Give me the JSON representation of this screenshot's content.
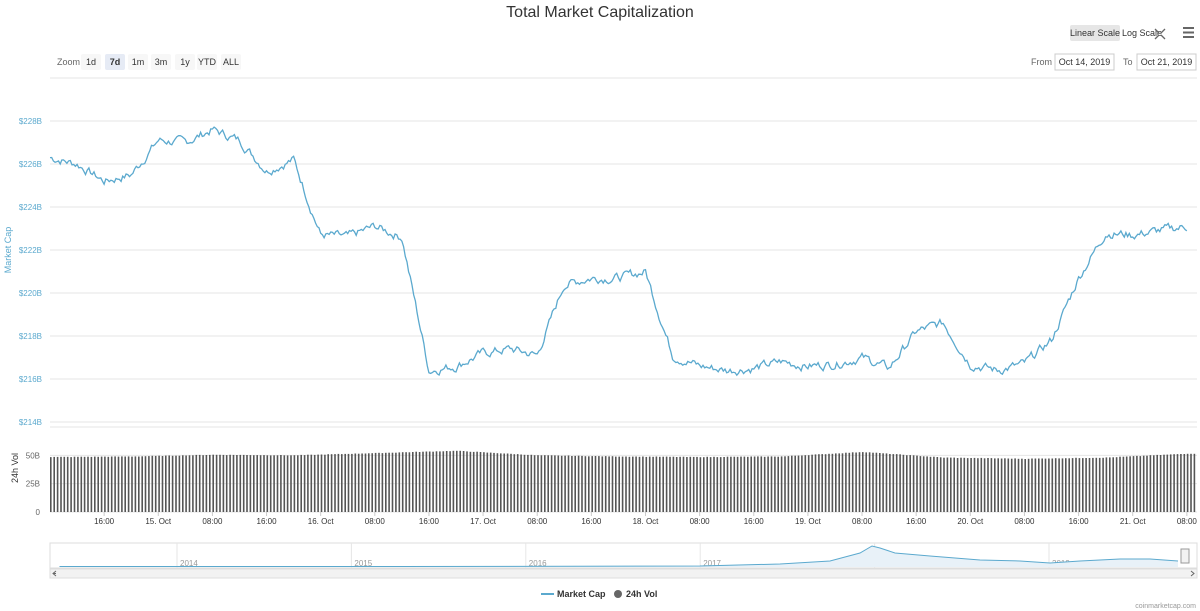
{
  "chart_data": {
    "type": "line",
    "title": "Total Market Capitalization",
    "zoom_label": "Zoom",
    "zoom_options": [
      "1d",
      "7d",
      "1m",
      "3m",
      "1y",
      "YTD",
      "ALL"
    ],
    "zoom_selected": "7d",
    "scale_options": [
      "Linear Scale",
      "Log Scale"
    ],
    "scale_selected": "Linear Scale",
    "from_label": "From",
    "from_value": "Oct 14, 2019",
    "to_label": "To",
    "to_value": "Oct 21, 2019",
    "ylabel": "Market Cap",
    "ylim": [
      214,
      230
    ],
    "y_ticks": [
      "$214B",
      "$216B",
      "$218B",
      "$220B",
      "$222B",
      "$224B",
      "$226B",
      "$228B"
    ],
    "vol_ylabel": "24h Vol",
    "vol_ylim": [
      0,
      75
    ],
    "vol_ticks": [
      "0",
      "25B",
      "50B"
    ],
    "x_ticks": [
      "16:00",
      "15. Oct",
      "08:00",
      "16:00",
      "16. Oct",
      "08:00",
      "16:00",
      "17. Oct",
      "08:00",
      "16:00",
      "18. Oct",
      "08:00",
      "16:00",
      "19. Oct",
      "08:00",
      "16:00",
      "20. Oct",
      "08:00",
      "16:00",
      "21. Oct",
      "08:00"
    ],
    "navigator_years": [
      "2014",
      "2015",
      "2016",
      "2017",
      "2018",
      "2019"
    ],
    "legend": [
      "Market Cap",
      "24h Vol"
    ],
    "legend_position": "bottom-center",
    "credit": "coinmarketcap.com",
    "series": [
      {
        "name": "Market Cap",
        "color": "#5ba9ce",
        "x": [
          "Oct 14 08:00",
          "Oct 14 12:00",
          "Oct 14 16:00",
          "Oct 14 20:00",
          "Oct 15 00:00",
          "Oct 15 04:00",
          "Oct 15 08:00",
          "Oct 15 12:00",
          "Oct 15 16:00",
          "Oct 15 20:00",
          "Oct 16 00:00",
          "Oct 16 04:00",
          "Oct 16 08:00",
          "Oct 16 12:00",
          "Oct 16 16:00",
          "Oct 16 20:00",
          "Oct 17 00:00",
          "Oct 17 04:00",
          "Oct 17 08:00",
          "Oct 17 12:00",
          "Oct 17 16:00",
          "Oct 17 20:00",
          "Oct 18 00:00",
          "Oct 18 04:00",
          "Oct 18 08:00",
          "Oct 18 12:00",
          "Oct 18 16:00",
          "Oct 18 20:00",
          "Oct 19 00:00",
          "Oct 19 04:00",
          "Oct 19 08:00",
          "Oct 19 12:00",
          "Oct 19 16:00",
          "Oct 19 20:00",
          "Oct 20 00:00",
          "Oct 20 04:00",
          "Oct 20 08:00",
          "Oct 20 12:00",
          "Oct 20 16:00",
          "Oct 20 20:00",
          "Oct 21 00:00",
          "Oct 21 04:00",
          "Oct 21 08:00"
        ],
        "values": [
          226.3,
          226.0,
          225.2,
          225.5,
          227.1,
          227.0,
          227.6,
          227.1,
          225.7,
          226.2,
          222.7,
          222.6,
          223.1,
          222.6,
          216.4,
          216.6,
          217.2,
          217.4,
          217.1,
          220.4,
          220.7,
          220.7,
          221.0,
          217.1,
          216.6,
          216.4,
          216.5,
          216.8,
          216.6,
          216.7,
          217.0,
          216.5,
          218.2,
          218.6,
          216.7,
          216.4,
          216.7,
          217.8,
          220.7,
          222.8,
          222.7,
          222.9,
          223.1
        ]
      },
      {
        "name": "24h Vol",
        "color": "#666666",
        "x": [
          "Oct 14 08:00",
          "Oct 14 20:00",
          "Oct 15 08:00",
          "Oct 15 20:00",
          "Oct 16 08:00",
          "Oct 16 20:00",
          "Oct 17 08:00",
          "Oct 17 20:00",
          "Oct 18 08:00",
          "Oct 18 20:00",
          "Oct 19 08:00",
          "Oct 19 20:00",
          "Oct 20 08:00",
          "Oct 20 20:00",
          "Oct 21 08:00"
        ],
        "values": [
          48.5,
          49.0,
          50.5,
          50.0,
          52.0,
          54.0,
          50.0,
          49.0,
          48.5,
          49.0,
          53.0,
          48.0,
          47.0,
          48.0,
          51.5
        ]
      }
    ]
  }
}
